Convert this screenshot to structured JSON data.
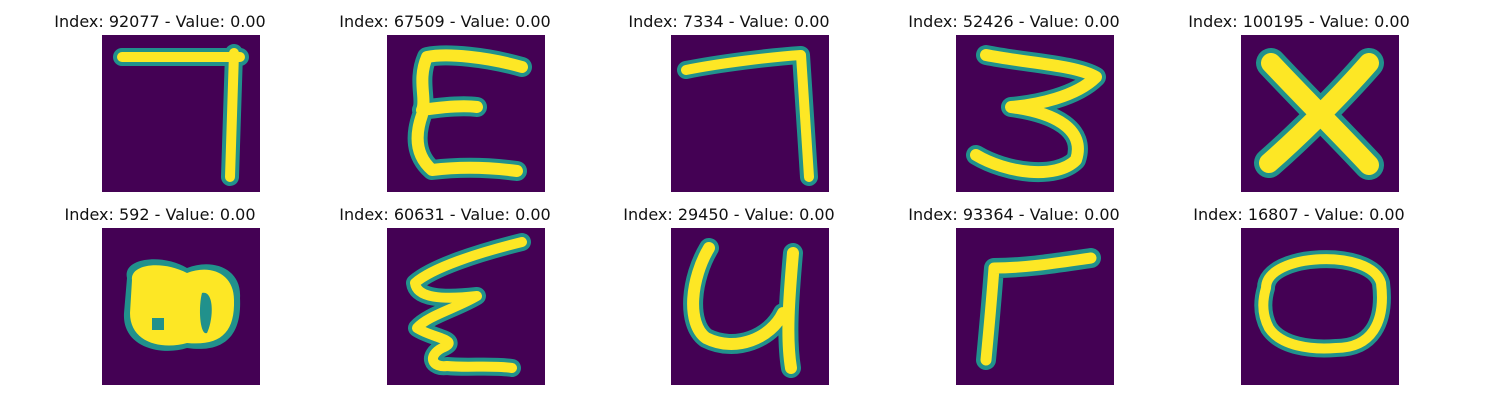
{
  "colors": {
    "background": "#440154",
    "mid": "#21918c",
    "high": "#fde725"
  },
  "panels": [
    {
      "title": "Index: 92077 - Value: 0.00",
      "glyph": "7"
    },
    {
      "title": "Index: 67509 - Value: 0.00",
      "glyph": "E"
    },
    {
      "title": "Index: 7334 - Value: 0.00",
      "glyph": "7"
    },
    {
      "title": "Index: 52426 - Value: 0.00",
      "glyph": "3"
    },
    {
      "title": "Index: 100195 - Value: 0.00",
      "glyph": "X"
    },
    {
      "title": "Index: 592 - Value: 0.00",
      "glyph": "blob"
    },
    {
      "title": "Index: 60631 - Value: 0.00",
      "glyph": "E"
    },
    {
      "title": "Index: 29450 - Value: 0.00",
      "glyph": "y"
    },
    {
      "title": "Index: 93364 - Value: 0.00",
      "glyph": "r"
    },
    {
      "title": "Index: 16807 - Value: 0.00",
      "glyph": "O"
    }
  ]
}
